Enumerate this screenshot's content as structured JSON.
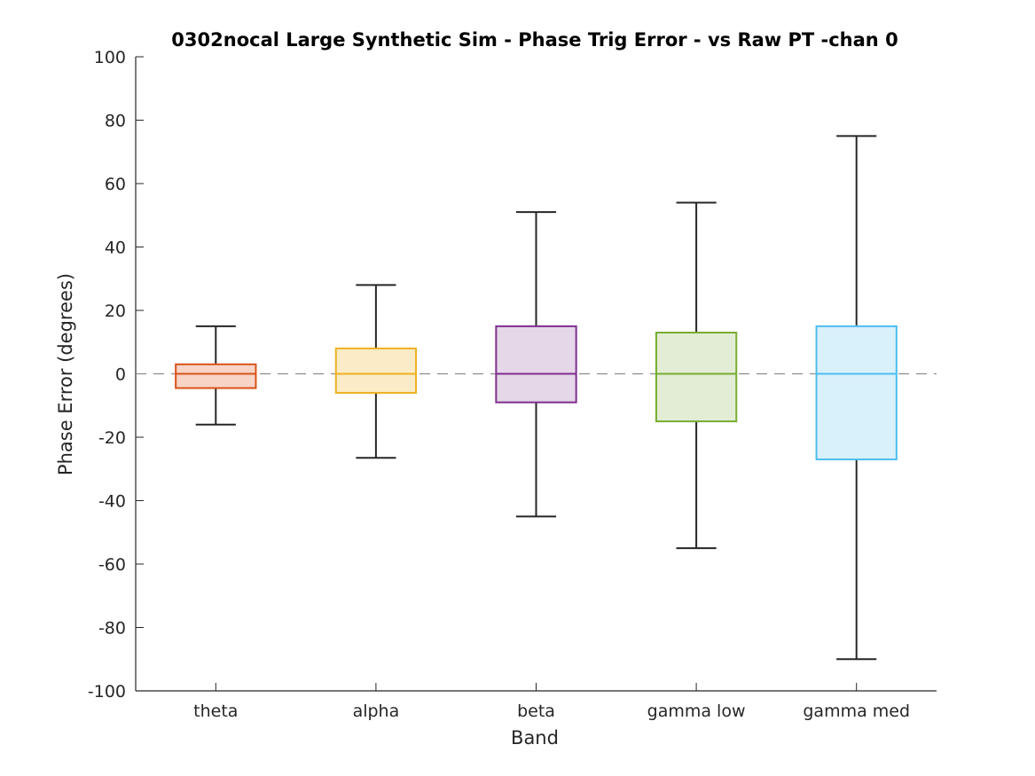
{
  "chart_data": {
    "type": "box",
    "title": "0302nocal Large Synthetic Sim - Phase Trig Error - vs Raw PT -chan 0",
    "xlabel": "Band",
    "ylabel": "Phase Error (degrees)",
    "ylim": [
      -100,
      100
    ],
    "yticks": [
      "-100",
      "-80",
      "-60",
      "-40",
      "-20",
      "0",
      "20",
      "40",
      "60",
      "80",
      "100"
    ],
    "reference_line": {
      "y": 0,
      "style": "dashed",
      "color": "#8c8c8c"
    },
    "categories": [
      "theta",
      "alpha",
      "beta",
      "gamma low",
      "gamma med"
    ],
    "boxes": [
      {
        "name": "theta",
        "whisker_low": -16,
        "q1": -4.5,
        "median": 0,
        "q3": 3,
        "whisker_high": 15,
        "edge_color": "#d95319",
        "fill_color": "#f7d4c5"
      },
      {
        "name": "alpha",
        "whisker_low": -26.5,
        "q1": -6,
        "median": 0,
        "q3": 8,
        "whisker_high": 28,
        "edge_color": "#edb120",
        "fill_color": "#fbecc7"
      },
      {
        "name": "beta",
        "whisker_low": -45,
        "q1": -9,
        "median": 0,
        "q3": 15,
        "whisker_high": 51,
        "edge_color": "#7e2f8e",
        "fill_color": "#e5d6e8"
      },
      {
        "name": "gamma low",
        "whisker_low": -55,
        "q1": -15,
        "median": 0,
        "q3": 13,
        "whisker_high": 54,
        "edge_color": "#77ac30",
        "fill_color": "#e3edd6"
      },
      {
        "name": "gamma med",
        "whisker_low": -90,
        "q1": -27,
        "median": 0,
        "q3": 15,
        "whisker_high": 75,
        "edge_color": "#4dbeee",
        "fill_color": "#d9f1fb"
      }
    ],
    "grid": false,
    "legend": "none",
    "colors": {
      "axis": "#262626",
      "whisker": "#262626"
    }
  }
}
